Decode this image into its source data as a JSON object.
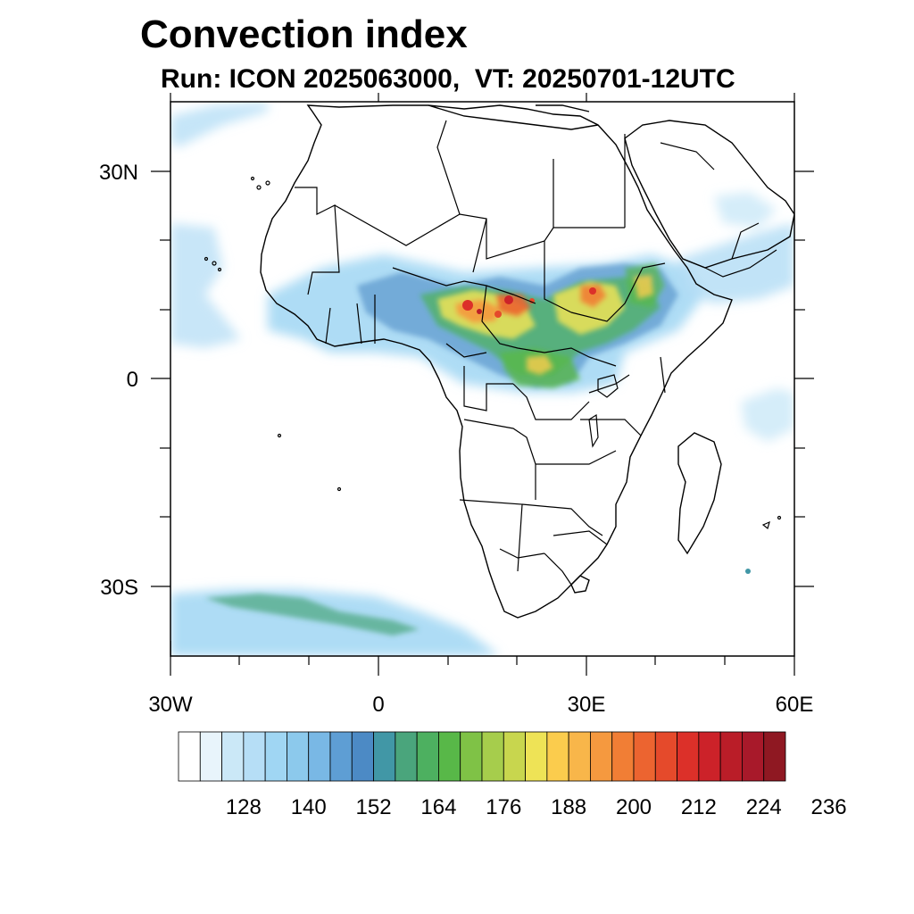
{
  "title": "Convection index",
  "subtitle": "Run: ICON 2025063000,  VT: 20250701-12UTC",
  "map": {
    "lon_range": [
      -30,
      60
    ],
    "lat_range": [
      -40,
      40
    ],
    "lat_labels": [
      "30N",
      "0",
      "30S"
    ],
    "lon_labels": [
      "30W",
      "0",
      "30E",
      "60E"
    ]
  },
  "colorbar": {
    "tick_labels": [
      "128",
      "140",
      "152",
      "164",
      "176",
      "188",
      "200",
      "212",
      "224",
      "236"
    ],
    "colors": [
      "#ffffff",
      "#e8f4fb",
      "#cbe8f7",
      "#b6def6",
      "#a0d6f3",
      "#8cc9ec",
      "#79b8e5",
      "#5e9ed4",
      "#4c8ac5",
      "#4197a6",
      "#4aa57c",
      "#4db060",
      "#58b848",
      "#7fc246",
      "#a6cd4c",
      "#c8d64e",
      "#eee356",
      "#fbcc4d",
      "#f8b64a",
      "#f5993f",
      "#f17e35",
      "#ec6430",
      "#e54a2b",
      "#dc3029",
      "#cc2229",
      "#ba1d28",
      "#a8192a",
      "#8f1822"
    ]
  }
}
